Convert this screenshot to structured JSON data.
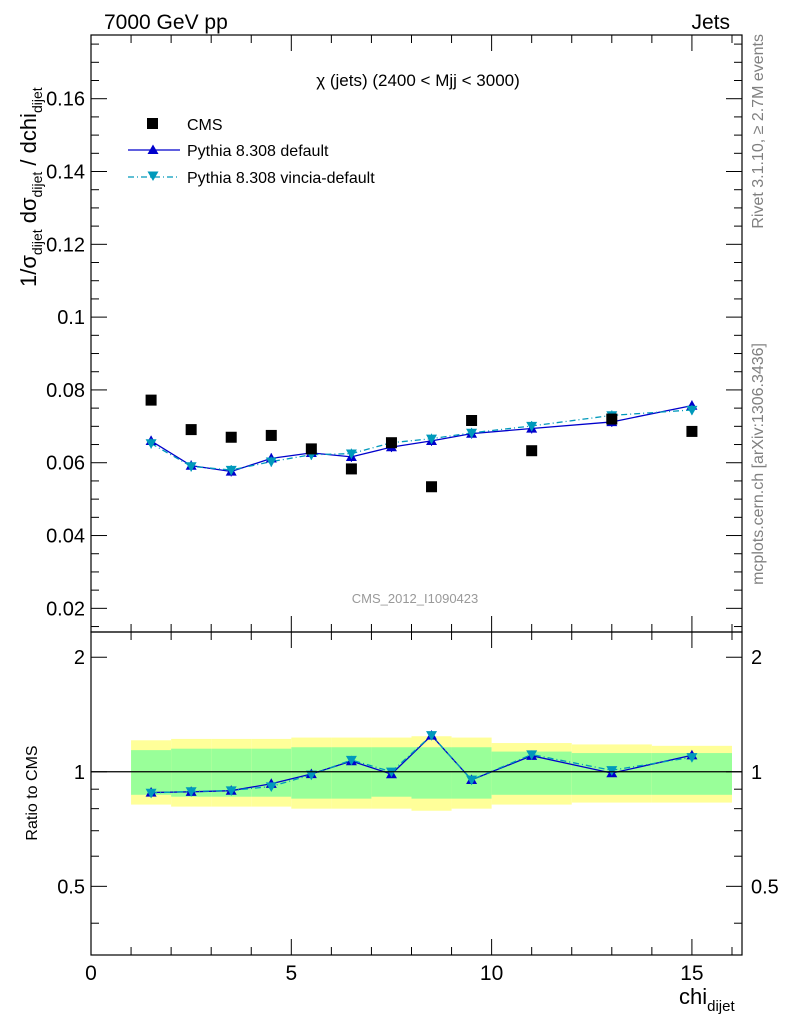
{
  "header": {
    "energy_label": "7000 GeV pp",
    "category_label": "Jets"
  },
  "side_labels": {
    "rivet": "Rivet 3.1.10, ≥ 2.7M events",
    "mcplots": "mcplots.cern.ch [arXiv:1306.3436]"
  },
  "chart_data": {
    "type": "scatter",
    "title": "χ (jets) (2400 < Mjj < 3000)",
    "watermark": "CMS_2012_I1090423",
    "xlabel": "chi",
    "xlabel_sub": "dijet",
    "xlim": [
      0,
      16.25
    ],
    "xticks": [
      0,
      5,
      10,
      15
    ],
    "main": {
      "ylabel_parts": [
        "1/σ",
        "dijet",
        " dσ",
        "dijet",
        " / dchi",
        "dijet"
      ],
      "ylim": [
        0.0135,
        0.1775
      ],
      "yticks": [
        0.02,
        0.04,
        0.06,
        0.08,
        0.1,
        0.12,
        0.14,
        0.16
      ],
      "ytick_labels": [
        "0.02",
        "0.04",
        "0.06",
        "0.08",
        "0.1",
        "0.12",
        "0.14",
        "0.16"
      ]
    },
    "ratio": {
      "ylabel": "Ratio to CMS",
      "ylim": [
        0.33,
        2.33
      ],
      "log_scale": true,
      "yticks": [
        0.5,
        1,
        2
      ],
      "ytick_labels": [
        "0.5",
        "1",
        "2"
      ]
    },
    "legend": {
      "position": "top-left",
      "entries": [
        "CMS",
        "Pythia 8.308 default",
        "Pythia 8.308 vincia-default"
      ]
    },
    "bins": [
      [
        1,
        2
      ],
      [
        2,
        3
      ],
      [
        3,
        4
      ],
      [
        4,
        5
      ],
      [
        5,
        6
      ],
      [
        6,
        7
      ],
      [
        7,
        8
      ],
      [
        8,
        9
      ],
      [
        9,
        10
      ],
      [
        10,
        12
      ],
      [
        12,
        14
      ],
      [
        14,
        16
      ]
    ],
    "x": [
      1.5,
      2.5,
      3.5,
      4.5,
      5.5,
      6.5,
      7.5,
      8.5,
      9.5,
      11,
      13,
      15
    ],
    "data": {
      "name": "CMS",
      "values": [
        0.0772,
        0.0691,
        0.067,
        0.0675,
        0.0638,
        0.0583,
        0.0655,
        0.0534,
        0.0716,
        0.0633,
        0.072,
        0.0686
      ],
      "band_stat": [
        [
          0.87,
          1.14
        ],
        [
          0.86,
          1.15
        ],
        [
          0.86,
          1.15
        ],
        [
          0.86,
          1.15
        ],
        [
          0.85,
          1.16
        ],
        [
          0.85,
          1.16
        ],
        [
          0.86,
          1.16
        ],
        [
          0.85,
          1.16
        ],
        [
          0.85,
          1.16
        ],
        [
          0.87,
          1.13
        ],
        [
          0.87,
          1.12
        ],
        [
          0.87,
          1.12
        ]
      ],
      "band_syst": [
        [
          0.82,
          1.21
        ],
        [
          0.81,
          1.22
        ],
        [
          0.81,
          1.22
        ],
        [
          0.81,
          1.22
        ],
        [
          0.8,
          1.23
        ],
        [
          0.8,
          1.23
        ],
        [
          0.8,
          1.23
        ],
        [
          0.79,
          1.24
        ],
        [
          0.8,
          1.23
        ],
        [
          0.82,
          1.19
        ],
        [
          0.83,
          1.18
        ],
        [
          0.83,
          1.17
        ]
      ],
      "color": "#000000"
    },
    "series": [
      {
        "name": "Pythia 8.308 default",
        "values": [
          0.066,
          0.0592,
          0.0576,
          0.0612,
          0.0627,
          0.0616,
          0.0643,
          0.066,
          0.068,
          0.0694,
          0.0712,
          0.0757
        ],
        "ratio": [
          0.882,
          0.886,
          0.892,
          0.93,
          0.987,
          1.067,
          0.986,
          1.246,
          0.952,
          1.102,
          0.992,
          1.105
        ],
        "color": "#0000cc",
        "marker": "triangle-up",
        "line": "solid"
      },
      {
        "name": "Pythia 8.308 vincia-default",
        "values": [
          0.0653,
          0.059,
          0.058,
          0.0603,
          0.0622,
          0.0625,
          0.0655,
          0.0666,
          0.0682,
          0.0701,
          0.073,
          0.0745
        ],
        "ratio": [
          0.88,
          0.888,
          0.893,
          0.915,
          0.982,
          1.074,
          1.0,
          1.247,
          0.953,
          1.11,
          1.009,
          1.092
        ],
        "color": "#0099bb",
        "marker": "triangle-down",
        "line": "dashdot"
      }
    ],
    "colors": {
      "band_syst": "#ffff99",
      "band_stat": "#99ff99"
    }
  }
}
